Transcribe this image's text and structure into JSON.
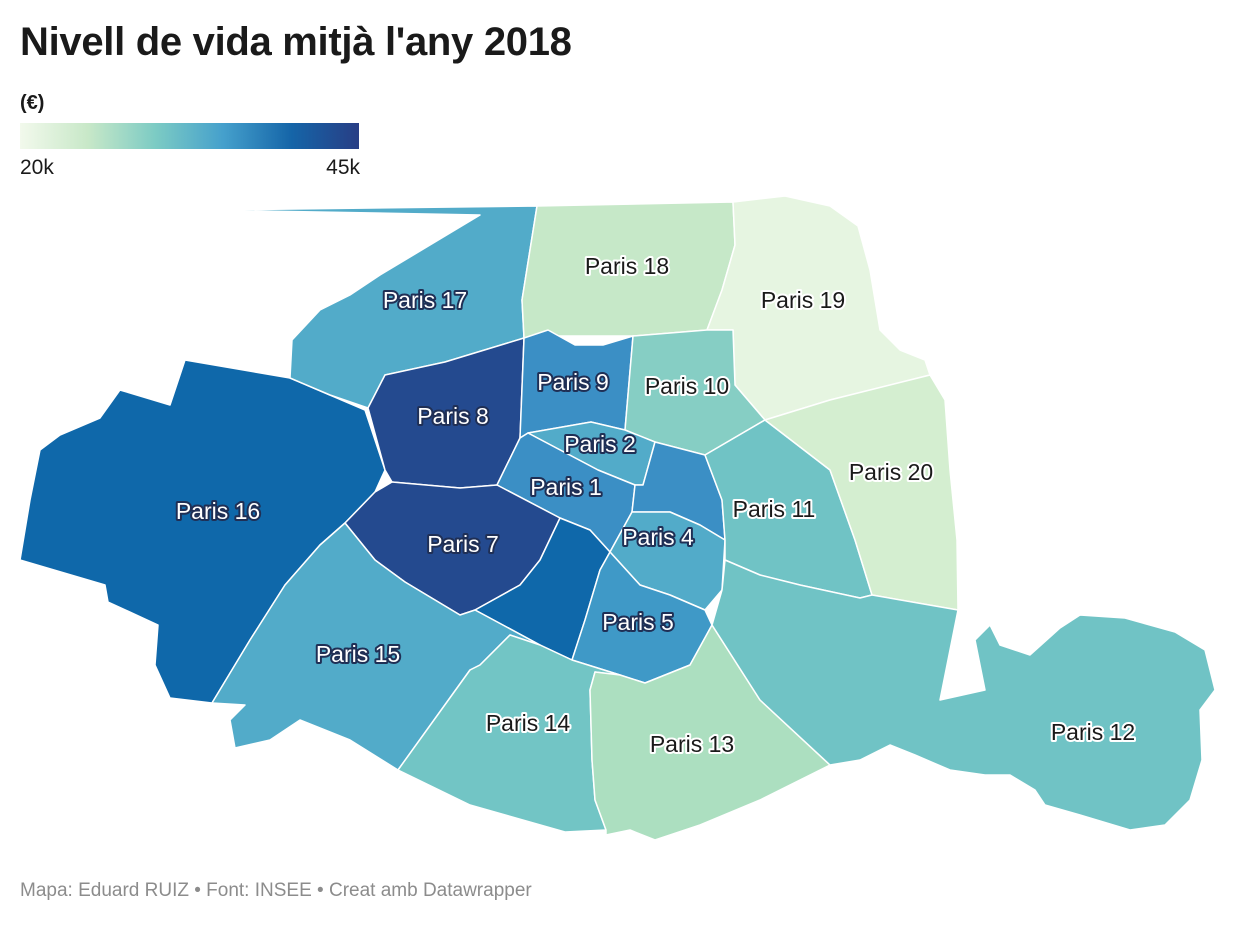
{
  "title": "Nivell de vida mitjà l'any 2018",
  "legend": {
    "unit": "(€)",
    "min_label": "20k",
    "max_label": "45k",
    "colors": [
      "#f2f9ec",
      "#c8e8c8",
      "#7ccbc4",
      "#45a0cc",
      "#1565a8",
      "#283e85"
    ]
  },
  "districts": [
    {
      "id": "16",
      "label": "Paris 16",
      "color": "#0f68aa"
    },
    {
      "id": "17",
      "label": "Paris 17",
      "color": "#52abc9"
    },
    {
      "id": "18",
      "label": "Paris 18",
      "color": "#c6e8c8"
    },
    {
      "id": "19",
      "label": "Paris 19",
      "color": "#e6f5e1"
    },
    {
      "id": "8",
      "label": "Paris 8",
      "color": "#244a8f"
    },
    {
      "id": "9",
      "label": "Paris 9",
      "color": "#3b8fc5"
    },
    {
      "id": "10",
      "label": "Paris 10",
      "color": "#86cec4"
    },
    {
      "id": "2",
      "label": "Paris 2",
      "color": "#52abc9"
    },
    {
      "id": "1",
      "label": "Paris 1",
      "color": "#3b8fc5"
    },
    {
      "id": "7",
      "label": "Paris 7",
      "color": "#244a8f"
    },
    {
      "id": "6",
      "label": "",
      "color": "#0f68aa"
    },
    {
      "id": "3",
      "label": "",
      "color": "#3b8fc5"
    },
    {
      "id": "4",
      "label": "Paris 4",
      "color": "#52abc9"
    },
    {
      "id": "11",
      "label": "Paris 11",
      "color": "#70c3c5"
    },
    {
      "id": "20",
      "label": "Paris 20",
      "color": "#d4eed0"
    },
    {
      "id": "5",
      "label": "Paris 5",
      "color": "#3f99c7"
    },
    {
      "id": "15",
      "label": "Paris 15",
      "color": "#52abc9"
    },
    {
      "id": "14",
      "label": "Paris 14",
      "color": "#72c5c5"
    },
    {
      "id": "13",
      "label": "Paris 13",
      "color": "#acdfc0"
    },
    {
      "id": "12",
      "label": "Paris 12",
      "color": "#70c3c5"
    }
  ],
  "source": "Mapa: Eduard RUIZ • Font: INSEE • Creat amb Datawrapper"
}
